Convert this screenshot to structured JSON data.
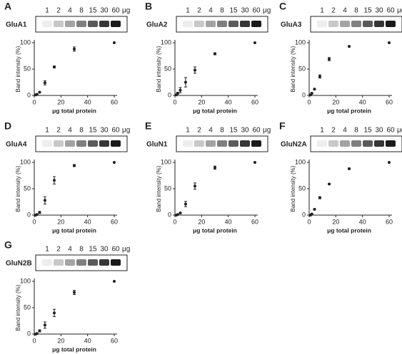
{
  "chart_data": [
    {
      "type": "scatter",
      "panel": "A",
      "blot_label": "GluA1",
      "lanes": [
        "1",
        "2",
        "4",
        "8",
        "15",
        "30",
        "60"
      ],
      "lane_unit": "μg",
      "xlabel": "μg total protein",
      "ylabel": "Band intensity (%)",
      "x": [
        1,
        2,
        4,
        8,
        15,
        30,
        60
      ],
      "values": [
        1,
        2,
        6,
        24,
        54,
        88,
        100
      ],
      "errors": [
        0.5,
        0.5,
        1,
        4,
        2,
        4,
        0
      ],
      "xlim": [
        0,
        60
      ],
      "ylim": [
        0,
        100
      ],
      "xticks": [
        0,
        20,
        40,
        60
      ],
      "yticks": [
        0,
        50,
        100
      ],
      "color": "#222222"
    },
    {
      "type": "scatter",
      "panel": "B",
      "blot_label": "GluA2",
      "lanes": [
        "1",
        "2",
        "4",
        "8",
        "15",
        "30",
        "60"
      ],
      "lane_unit": "μg",
      "xlabel": "μg total protein",
      "ylabel": "Band intensity (%)",
      "x": [
        1,
        2,
        4,
        8,
        15,
        30,
        60
      ],
      "values": [
        1,
        4,
        10,
        25,
        48,
        79,
        100
      ],
      "errors": [
        1,
        2,
        5,
        9,
        6,
        2,
        0
      ],
      "xlim": [
        0,
        60
      ],
      "ylim": [
        0,
        100
      ],
      "xticks": [
        0,
        20,
        40,
        60
      ],
      "yticks": [
        0,
        50,
        100
      ],
      "color": "#222222"
    },
    {
      "type": "scatter",
      "panel": "C",
      "blot_label": "GluA3",
      "lanes": [
        "1",
        "2",
        "4",
        "8",
        "15",
        "30",
        "60"
      ],
      "lane_unit": "μg",
      "xlabel": "μg total protein",
      "ylabel": "Band intensity (%)",
      "x": [
        1,
        2,
        4,
        8,
        15,
        30,
        60
      ],
      "values": [
        1,
        4,
        12,
        36,
        69,
        93,
        100
      ],
      "errors": [
        0.5,
        1,
        1,
        3,
        3,
        1,
        0
      ],
      "xlim": [
        0,
        60
      ],
      "ylim": [
        0,
        100
      ],
      "xticks": [
        0,
        20,
        40,
        60
      ],
      "yticks": [
        0,
        50,
        100
      ],
      "color": "#222222"
    },
    {
      "type": "scatter",
      "panel": "D",
      "blot_label": "GluA4",
      "lanes": [
        "1",
        "2",
        "4",
        "8",
        "15",
        "30",
        "60"
      ],
      "lane_unit": "μg",
      "xlabel": "μg total protein",
      "ylabel": "Band intensity (%)",
      "x": [
        1,
        2,
        4,
        8,
        15,
        30,
        60
      ],
      "values": [
        0,
        1,
        5,
        28,
        66,
        94,
        100
      ],
      "errors": [
        0.5,
        0.5,
        2,
        7,
        7,
        2,
        0
      ],
      "xlim": [
        0,
        60
      ],
      "ylim": [
        0,
        100
      ],
      "xticks": [
        0,
        20,
        40,
        60
      ],
      "yticks": [
        0,
        50,
        100
      ],
      "color": "#222222"
    },
    {
      "type": "scatter",
      "panel": "E",
      "blot_label": "GluN1",
      "lanes": [
        "1",
        "2",
        "4",
        "8",
        "15",
        "30",
        "60"
      ],
      "lane_unit": "μg",
      "xlabel": "μg total protein",
      "ylabel": "Band intensity (%)",
      "x": [
        1,
        2,
        4,
        8,
        15,
        30,
        60
      ],
      "values": [
        0,
        1,
        4,
        21,
        55,
        90,
        100
      ],
      "errors": [
        0.5,
        0.5,
        1,
        5,
        6,
        3,
        0
      ],
      "xlim": [
        0,
        60
      ],
      "ylim": [
        0,
        100
      ],
      "xticks": [
        0,
        20,
        40,
        60
      ],
      "yticks": [
        0,
        50,
        100
      ],
      "color": "#222222"
    },
    {
      "type": "scatter",
      "panel": "F",
      "blot_label": "GluN2A",
      "lanes": [
        "1",
        "2",
        "4",
        "8",
        "15",
        "30",
        "60"
      ],
      "lane_unit": "μg",
      "xlabel": "μg total protein",
      "ylabel": "Band intensity (%)",
      "x": [
        1,
        2,
        4,
        8,
        15,
        30,
        60
      ],
      "values": [
        0,
        2,
        11,
        33,
        59,
        88,
        100
      ],
      "errors": [
        0.5,
        0.5,
        1,
        2,
        1,
        1,
        0
      ],
      "xlim": [
        0,
        60
      ],
      "ylim": [
        0,
        100
      ],
      "xticks": [
        0,
        20,
        40,
        60
      ],
      "yticks": [
        0,
        50,
        100
      ],
      "color": "#222222"
    },
    {
      "type": "scatter",
      "panel": "G",
      "blot_label": "GluN2B",
      "lanes": [
        "1",
        "2",
        "4",
        "8",
        "15",
        "30",
        "60"
      ],
      "lane_unit": "μg",
      "xlabel": "μg total protein",
      "ylabel": "Band intensity (%)",
      "x": [
        1,
        2,
        4,
        8,
        15,
        30,
        60
      ],
      "values": [
        0,
        1,
        6,
        17,
        40,
        79,
        100
      ],
      "errors": [
        0.5,
        0.5,
        2,
        6,
        7,
        4,
        0
      ],
      "xlim": [
        0,
        60
      ],
      "ylim": [
        0,
        100
      ],
      "xticks": [
        0,
        20,
        40,
        60
      ],
      "yticks": [
        0,
        50,
        100
      ],
      "color": "#222222"
    }
  ]
}
